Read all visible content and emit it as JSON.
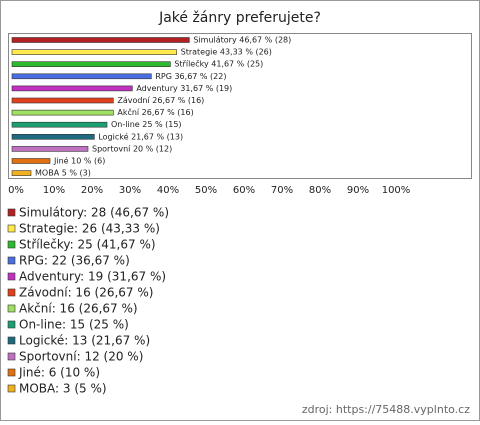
{
  "chart_data": {
    "type": "hbar",
    "title": "Jaké žánry preferujete?",
    "values": [
      46.67,
      43.33,
      41.67,
      36.67,
      31.67,
      26.67,
      26.67,
      25,
      21.67,
      20,
      10,
      5
    ],
    "value_labels": [
      "Simulátory 46,67 % (28)",
      "Strategie 43,33 % (26)",
      "Střílečky 41,67 % (25)",
      "RPG 36,67 % (22)",
      "Adventury 31,67 % (19)",
      "Závodní 26,67 % (16)",
      "Akční 26,67 % (16)",
      "On-line 25 % (15)",
      "Logické 21,67 % (13)",
      "Sportovní 20 % (12)",
      "Jiné 10 % (6)",
      "MOBA 5 % (3)"
    ],
    "legend_labels": [
      "Simulátory: 28 (46,67 %)",
      "Strategie: 26 (43,33 %)",
      "Střílečky: 25 (41,67 %)",
      "RPG: 22 (36,67 %)",
      "Adventury: 19 (31,67 %)",
      "Závodní: 16 (26,67 %)",
      "Akční: 16 (26,67 %)",
      "On-line: 15 (25 %)",
      "Logické: 13 (21,67 %)",
      "Sportovní: 12 (20 %)",
      "Jiné: 6 (10 %)",
      "MOBA: 3 (5 %)"
    ],
    "colors": [
      "#b22222",
      "#ffe94d",
      "#2db82d",
      "#4a6ee0",
      "#c030c0",
      "#e0401a",
      "#a0e060",
      "#1aa070",
      "#206a80",
      "#c070c0",
      "#e07010",
      "#f0b020"
    ],
    "xlim": [
      0,
      100
    ],
    "xticks": [
      {
        "value": 0,
        "label": "0%"
      },
      {
        "value": 10,
        "label": "10%"
      },
      {
        "value": 20,
        "label": "20%"
      },
      {
        "value": 30,
        "label": "30%"
      },
      {
        "value": 40,
        "label": "40%"
      },
      {
        "value": 50,
        "label": "50%"
      },
      {
        "value": 60,
        "label": "60%"
      },
      {
        "value": 70,
        "label": "70%"
      },
      {
        "value": 80,
        "label": "80%"
      },
      {
        "value": 90,
        "label": "90%"
      },
      {
        "value": 100,
        "label": "100%"
      }
    ],
    "grid": false,
    "source": "zdroj: https://75488.vyplnto.cz"
  }
}
